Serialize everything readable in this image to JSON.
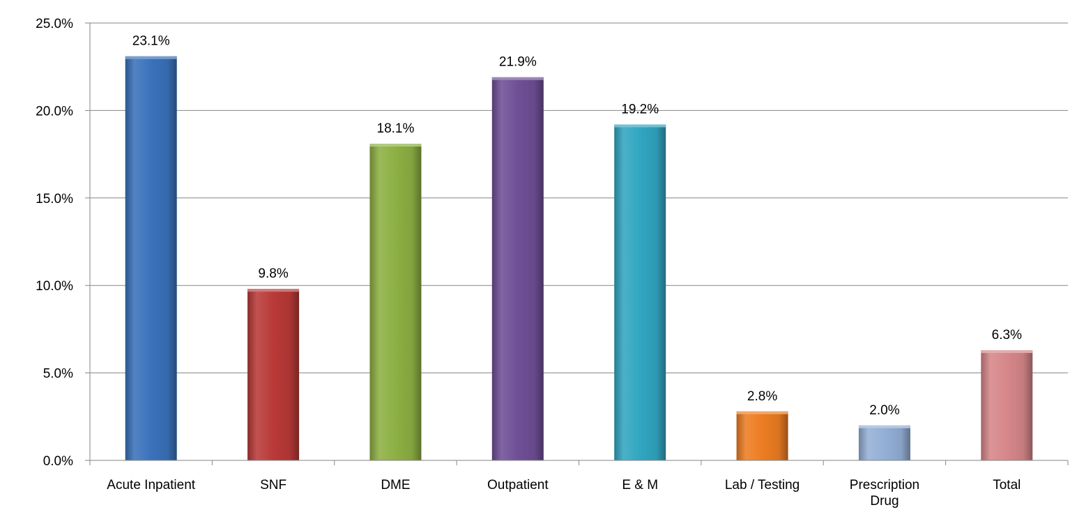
{
  "chart_data": {
    "type": "bar",
    "categories": [
      "Acute Inpatient",
      "SNF",
      "DME",
      "Outpatient",
      "E & M",
      "Lab / Testing",
      "Prescription Drug",
      "Total"
    ],
    "category_lines": [
      [
        "Acute Inpatient"
      ],
      [
        "SNF"
      ],
      [
        "DME"
      ],
      [
        "Outpatient"
      ],
      [
        "E & M"
      ],
      [
        "Lab / Testing"
      ],
      [
        "Prescription",
        "Drug"
      ],
      [
        "Total"
      ]
    ],
    "values": [
      23.1,
      9.8,
      18.1,
      21.9,
      19.2,
      2.8,
      2.0,
      6.3
    ],
    "data_labels": [
      "23.1%",
      "9.8%",
      "18.1%",
      "21.9%",
      "19.2%",
      "2.8%",
      "2.0%",
      "6.3%"
    ],
    "colors": [
      "#3a72bb",
      "#b93a38",
      "#8db043",
      "#6f4f96",
      "#31a6c1",
      "#ed7d22",
      "#94afd6",
      "#d68789"
    ],
    "ylim": [
      0,
      25
    ],
    "yticks": [
      0,
      5,
      10,
      15,
      20,
      25
    ],
    "ytick_labels": [
      "0.0%",
      "5.0%",
      "10.0%",
      "15.0%",
      "20.0%",
      "25.0%"
    ],
    "title": "",
    "xlabel": "",
    "ylabel": "",
    "grid": true,
    "legend": "none"
  }
}
